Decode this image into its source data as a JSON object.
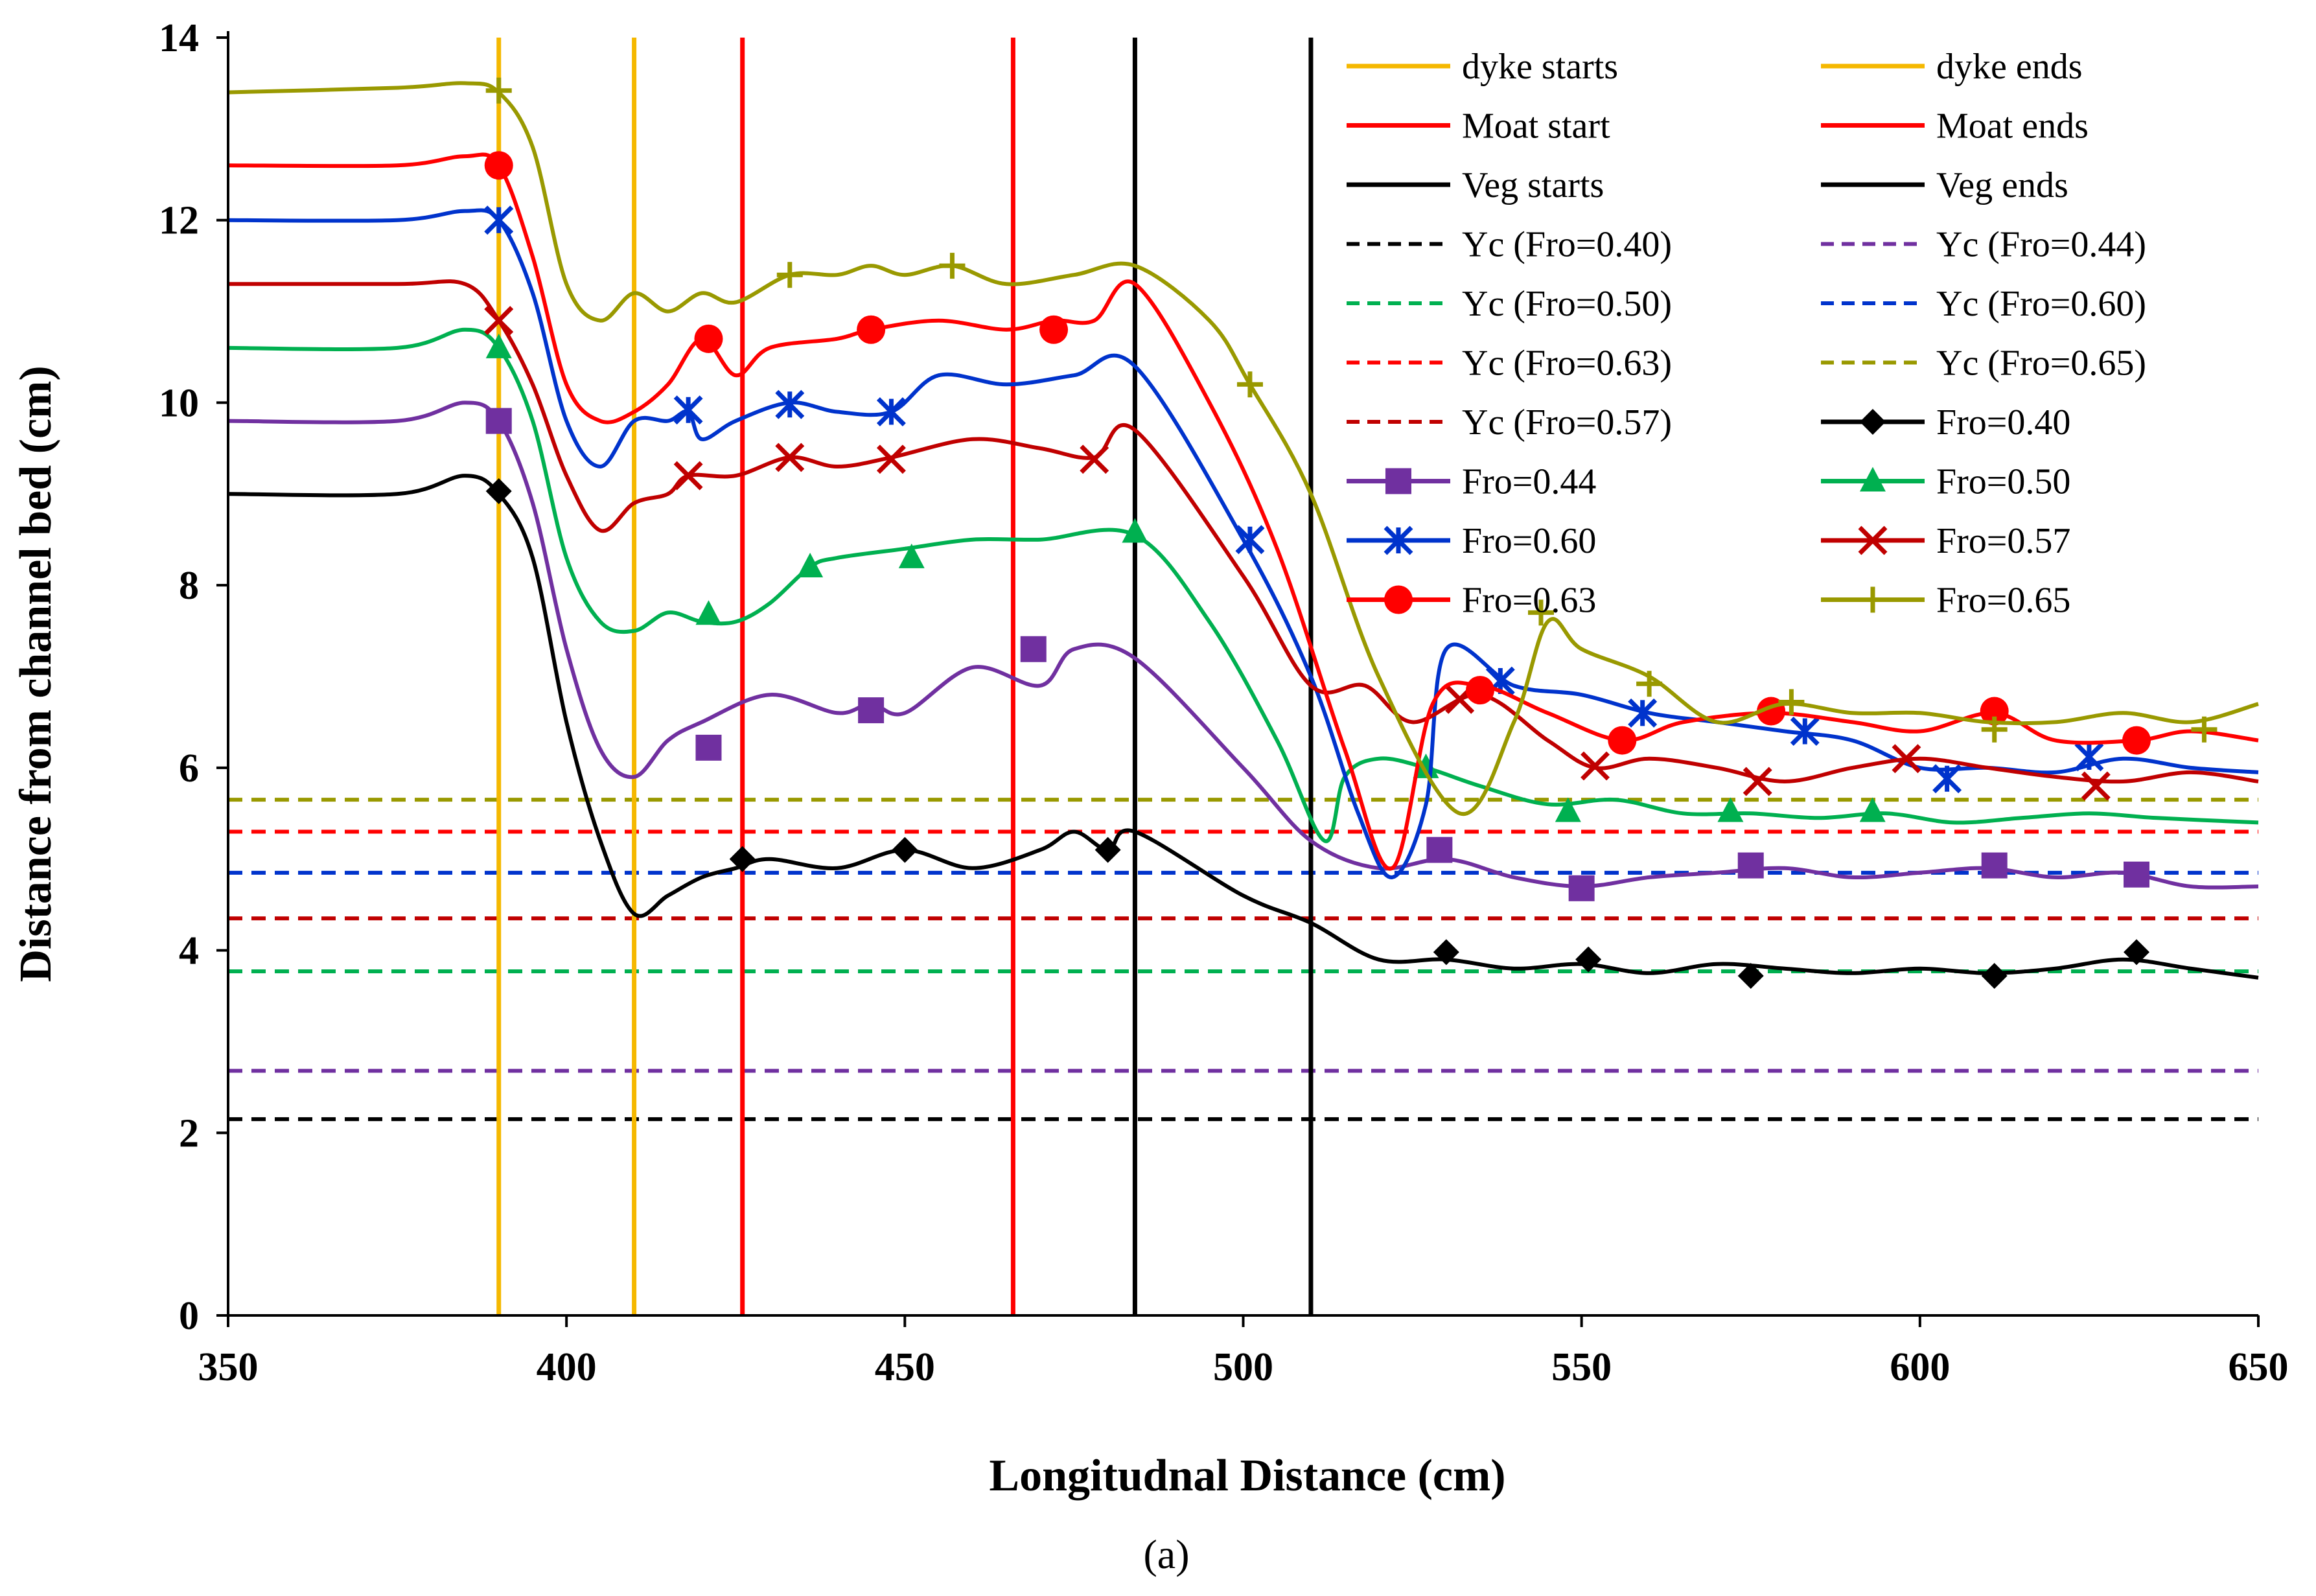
{
  "chart_data": {
    "type": "line",
    "title": "",
    "caption": "(a)",
    "xlabel": "Longitudnal  Distance (cm)",
    "ylabel": "Distance  from channel bed (cm)",
    "xlim": [
      350,
      650
    ],
    "ylim": [
      0,
      14
    ],
    "xticks": [
      350,
      400,
      450,
      500,
      550,
      600,
      650
    ],
    "yticks": [
      0,
      2,
      4,
      6,
      8,
      10,
      12,
      14
    ],
    "grid": false,
    "legend_position": "top-right",
    "vertical_lines": [
      {
        "name": "dyke starts",
        "x": 390,
        "color": "#F5B800"
      },
      {
        "name": "dyke ends",
        "x": 410,
        "color": "#F5B800"
      },
      {
        "name": "Moat start",
        "x": 426,
        "color": "#FF0000"
      },
      {
        "name": "Moat ends",
        "x": 466,
        "color": "#FF0000"
      },
      {
        "name": "Veg starts",
        "x": 484,
        "color": "#000000"
      },
      {
        "name": "Veg ends",
        "x": 510,
        "color": "#000000"
      }
    ],
    "critical_depth_lines": [
      {
        "name": "Yc (Fro=0.40)",
        "y": 2.15,
        "color": "#000000"
      },
      {
        "name": "Yc (Fro=0.44)",
        "y": 2.68,
        "color": "#7030A0"
      },
      {
        "name": "Yc (Fro=0.50)",
        "y": 3.77,
        "color": "#00B050"
      },
      {
        "name": "Yc (Fro=0.60)",
        "y": 4.85,
        "color": "#0033CC"
      },
      {
        "name": "Yc (Fro=0.63)",
        "y": 5.3,
        "color": "#FF0000"
      },
      {
        "name": "Yc (Fro=0.65)",
        "y": 5.65,
        "color": "#999900"
      },
      {
        "name": "Yc (Fro=0.57)",
        "y": 4.35,
        "color": "#C00000"
      }
    ],
    "series": [
      {
        "name": "Fro=0.40",
        "color": "#000000",
        "marker": "diamond",
        "x": [
          350,
          375,
          385,
          390,
          395,
          400,
          405,
          410,
          415,
          420,
          425,
          430,
          440,
          450,
          460,
          470,
          475,
          480,
          484,
          500,
          510,
          520,
          530,
          540,
          550,
          560,
          570,
          580,
          590,
          600,
          610,
          620,
          630,
          640,
          650
        ],
        "y": [
          9.0,
          9.0,
          9.2,
          9.0,
          8.3,
          6.5,
          5.2,
          4.4,
          4.6,
          4.8,
          4.9,
          5.0,
          4.9,
          5.1,
          4.9,
          5.1,
          5.3,
          5.1,
          5.3,
          4.6,
          4.3,
          3.9,
          3.9,
          3.8,
          3.85,
          3.75,
          3.85,
          3.8,
          3.75,
          3.8,
          3.75,
          3.8,
          3.9,
          3.8,
          3.7
        ],
        "marker_x": [
          390,
          426,
          450,
          480,
          530,
          551,
          575,
          611,
          632
        ],
        "marker_y": [
          9.03,
          5.0,
          5.1,
          5.1,
          3.98,
          3.9,
          3.72,
          3.72,
          3.98
        ]
      },
      {
        "name": "Fro=0.44",
        "color": "#7030A0",
        "marker": "square",
        "x": [
          350,
          375,
          385,
          390,
          395,
          400,
          405,
          410,
          415,
          420,
          430,
          440,
          445,
          450,
          460,
          470,
          475,
          484,
          500,
          510,
          520,
          530,
          540,
          550,
          560,
          570,
          580,
          590,
          600,
          610,
          620,
          630,
          640,
          650
        ],
        "y": [
          9.8,
          9.8,
          10.0,
          9.8,
          8.9,
          7.3,
          6.2,
          5.9,
          6.3,
          6.5,
          6.8,
          6.6,
          6.7,
          6.6,
          7.1,
          6.9,
          7.3,
          7.2,
          6.0,
          5.2,
          4.9,
          5.0,
          4.8,
          4.7,
          4.8,
          4.85,
          4.9,
          4.8,
          4.85,
          4.9,
          4.8,
          4.85,
          4.7,
          4.7
        ],
        "marker_x": [
          390,
          421,
          445,
          469,
          529,
          550,
          575,
          611,
          632
        ],
        "marker_y": [
          9.8,
          6.22,
          6.63,
          7.3,
          5.1,
          4.68,
          4.93,
          4.93,
          4.83
        ]
      },
      {
        "name": "Fro=0.50",
        "color": "#00B050",
        "marker": "triangle",
        "x": [
          350,
          375,
          385,
          390,
          395,
          400,
          405,
          410,
          415,
          420,
          425,
          430,
          436,
          440,
          450,
          460,
          470,
          484,
          495,
          505,
          512,
          515,
          520,
          527,
          535,
          545,
          555,
          565,
          575,
          585,
          595,
          605,
          615,
          625,
          635,
          650
        ],
        "y": [
          10.6,
          10.6,
          10.8,
          10.6,
          9.8,
          8.3,
          7.6,
          7.5,
          7.7,
          7.6,
          7.6,
          7.8,
          8.2,
          8.3,
          8.4,
          8.5,
          8.5,
          8.55,
          7.6,
          6.3,
          5.2,
          5.9,
          6.1,
          6.0,
          5.8,
          5.6,
          5.65,
          5.5,
          5.5,
          5.45,
          5.5,
          5.4,
          5.45,
          5.5,
          5.45,
          5.4
        ],
        "marker_x": [
          390,
          421,
          436,
          451,
          484,
          527,
          548,
          572,
          593
        ],
        "marker_y": [
          10.6,
          7.68,
          8.2,
          8.3,
          8.58,
          6.0,
          5.52,
          5.52,
          5.52
        ]
      },
      {
        "name": "Fro=0.60",
        "color": "#0033CC",
        "marker": "star",
        "x": [
          350,
          375,
          385,
          390,
          395,
          400,
          405,
          410,
          415,
          418,
          420,
          425,
          433,
          440,
          448,
          455,
          465,
          475,
          484,
          500,
          510,
          517,
          522,
          527,
          530,
          540,
          550,
          560,
          570,
          580,
          590,
          600,
          610,
          620,
          630,
          640,
          650
        ],
        "y": [
          12.0,
          12.0,
          12.1,
          12.0,
          11.2,
          9.8,
          9.3,
          9.8,
          9.8,
          9.9,
          9.6,
          9.8,
          10.0,
          9.9,
          9.9,
          10.3,
          10.2,
          10.3,
          10.4,
          8.5,
          7.0,
          5.5,
          4.8,
          5.6,
          7.3,
          6.9,
          6.8,
          6.6,
          6.5,
          6.4,
          6.3,
          6.0,
          6.0,
          5.95,
          6.1,
          6.0,
          5.95
        ],
        "marker_x": [
          390,
          418,
          433,
          448,
          501,
          538,
          559,
          583,
          604,
          625
        ],
        "marker_y": [
          12.0,
          9.92,
          9.98,
          9.9,
          8.5,
          6.95,
          6.6,
          6.4,
          5.88,
          6.12
        ]
      },
      {
        "name": "Fro=0.57",
        "color": "#C00000",
        "marker": "x",
        "x": [
          350,
          375,
          385,
          390,
          395,
          400,
          405,
          410,
          415,
          418,
          425,
          433,
          440,
          448,
          460,
          470,
          478,
          484,
          500,
          510,
          518,
          525,
          535,
          545,
          552,
          560,
          570,
          580,
          590,
          600,
          610,
          620,
          630,
          640,
          650
        ],
        "y": [
          11.3,
          11.3,
          11.3,
          10.9,
          10.2,
          9.2,
          8.6,
          8.9,
          9.0,
          9.2,
          9.2,
          9.4,
          9.3,
          9.4,
          9.6,
          9.5,
          9.4,
          9.7,
          8.1,
          6.9,
          6.9,
          6.5,
          6.8,
          6.3,
          6.0,
          6.1,
          6.0,
          5.85,
          6.0,
          6.1,
          6.0,
          5.9,
          5.85,
          5.95,
          5.85
        ],
        "marker_x": [
          390,
          418,
          433,
          448,
          478,
          532,
          552,
          576,
          598,
          626
        ],
        "marker_y": [
          10.9,
          9.2,
          9.4,
          9.38,
          9.38,
          6.75,
          6.02,
          5.85,
          6.1,
          5.8
        ]
      },
      {
        "name": "Fro=0.63",
        "color": "#FF0000",
        "marker": "circle",
        "x": [
          350,
          375,
          385,
          390,
          395,
          400,
          405,
          410,
          415,
          420,
          425,
          430,
          440,
          445,
          455,
          465,
          472,
          478,
          484,
          495,
          505,
          515,
          522,
          528,
          535,
          545,
          556,
          565,
          578,
          590,
          600,
          611,
          620,
          632,
          640,
          650
        ],
        "y": [
          12.6,
          12.6,
          12.7,
          12.6,
          11.6,
          10.2,
          9.8,
          9.9,
          10.2,
          10.7,
          10.3,
          10.6,
          10.7,
          10.8,
          10.9,
          10.8,
          10.9,
          10.9,
          11.3,
          10.0,
          8.4,
          6.2,
          4.9,
          6.7,
          6.9,
          6.6,
          6.3,
          6.5,
          6.6,
          6.5,
          6.4,
          6.6,
          6.3,
          6.3,
          6.4,
          6.3
        ],
        "marker_x": [
          390,
          421,
          445,
          472,
          535,
          556,
          578,
          611,
          632
        ],
        "marker_y": [
          12.6,
          10.7,
          10.8,
          10.8,
          6.85,
          6.3,
          6.62,
          6.62,
          6.3
        ]
      },
      {
        "name": "Fro=0.65",
        "color": "#999900",
        "marker": "plus",
        "x": [
          350,
          375,
          385,
          390,
          395,
          400,
          405,
          410,
          415,
          420,
          425,
          433,
          440,
          445,
          450,
          457,
          465,
          475,
          484,
          495,
          501,
          510,
          520,
          532,
          540,
          545,
          550,
          560,
          570,
          580,
          590,
          600,
          610,
          620,
          630,
          640,
          650
        ],
        "y": [
          13.4,
          13.45,
          13.5,
          13.4,
          12.8,
          11.3,
          10.9,
          11.2,
          11.0,
          11.2,
          11.1,
          11.4,
          11.4,
          11.5,
          11.4,
          11.5,
          11.3,
          11.4,
          11.5,
          10.9,
          10.2,
          9.0,
          7.0,
          5.5,
          6.5,
          7.6,
          7.3,
          7.0,
          6.5,
          6.7,
          6.6,
          6.6,
          6.5,
          6.5,
          6.6,
          6.5,
          6.7
        ],
        "marker_x": [
          390,
          433,
          457,
          501,
          544,
          560,
          581,
          611,
          642
        ],
        "marker_y": [
          13.42,
          11.4,
          11.5,
          10.2,
          7.7,
          6.92,
          6.72,
          6.42,
          6.42
        ]
      }
    ]
  }
}
